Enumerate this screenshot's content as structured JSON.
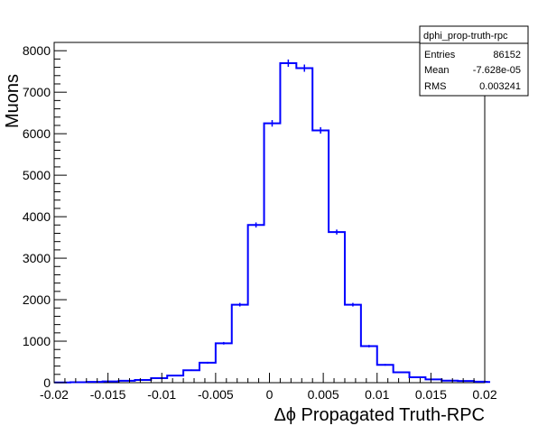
{
  "chart_data": {
    "type": "bar",
    "xlabel": "Δϕ Propagated Truth-RPC",
    "ylabel": "Muons",
    "xlim": [
      -0.02,
      0.02
    ],
    "ylim": [
      0,
      8200
    ],
    "bin_width": 0.0015,
    "bin_edges_start": -0.02,
    "x_ticks": [
      "-0.02",
      "-0.015",
      "-0.01",
      "-0.005",
      "0",
      "0.005",
      "0.01",
      "0.015",
      "0.02"
    ],
    "x_tick_values": [
      -0.02,
      -0.015,
      -0.01,
      -0.005,
      0,
      0.005,
      0.01,
      0.015,
      0.02
    ],
    "y_ticks": [
      "0",
      "1000",
      "2000",
      "3000",
      "4000",
      "5000",
      "6000",
      "7000",
      "8000"
    ],
    "y_tick_values": [
      0,
      1000,
      2000,
      3000,
      4000,
      5000,
      6000,
      7000,
      8000
    ],
    "values": [
      5,
      10,
      20,
      30,
      45,
      65,
      110,
      170,
      300,
      480,
      950,
      1880,
      3800,
      6250,
      7700,
      7580,
      6080,
      3630,
      1880,
      880,
      430,
      250,
      130,
      80,
      50,
      40,
      25,
      15
    ],
    "color": "#0000ff",
    "stats_box": {
      "title": "dphi_prop-truth-rpc",
      "rows": [
        {
          "label": "Entries",
          "value": "86152"
        },
        {
          "label": "Mean",
          "value": "-7.628e-05"
        },
        {
          "label": "RMS",
          "value": "0.003241"
        }
      ]
    }
  }
}
